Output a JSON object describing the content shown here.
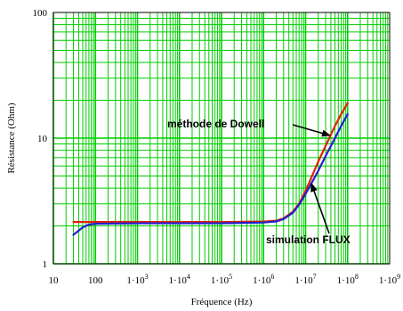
{
  "chart_data": {
    "type": "line",
    "xscale": "log",
    "yscale": "log",
    "xlim": [
      10,
      1000000000
    ],
    "ylim": [
      1,
      100
    ],
    "xlabel": "Fréquence (Hz)",
    "ylabel": "Résistance (Ohm)",
    "grid": true,
    "grid_color": "#00cc00",
    "x_ticks": [
      {
        "value": 10,
        "base": "10",
        "exp": ""
      },
      {
        "value": 100,
        "base": "100",
        "exp": ""
      },
      {
        "value": 1000,
        "base": "1·10",
        "exp": "3"
      },
      {
        "value": 10000,
        "base": "1·10",
        "exp": "4"
      },
      {
        "value": 100000,
        "base": "1·10",
        "exp": "5"
      },
      {
        "value": 1000000,
        "base": "1·10",
        "exp": "6"
      },
      {
        "value": 10000000,
        "base": "1·10",
        "exp": "7"
      },
      {
        "value": 100000000,
        "base": "1·10",
        "exp": "8"
      },
      {
        "value": 1000000000,
        "base": "1·10",
        "exp": "9"
      }
    ],
    "y_ticks": [
      {
        "value": 1,
        "label": "1"
      },
      {
        "value": 10,
        "label": "10"
      },
      {
        "value": 100,
        "label": "100"
      }
    ],
    "series": [
      {
        "name": "méthode de Dowell",
        "color": "#e02000",
        "x": [
          30,
          100,
          1000,
          10000,
          100000,
          1000000,
          2000000,
          3000000,
          5000000,
          7000000,
          10000000,
          15000000,
          20000000,
          30000000,
          50000000,
          70000000,
          100000000
        ],
        "y": [
          2.15,
          2.15,
          2.15,
          2.15,
          2.15,
          2.17,
          2.2,
          2.3,
          2.6,
          3.0,
          3.8,
          5.2,
          6.5,
          8.7,
          12.5,
          15.5,
          19.0
        ]
      },
      {
        "name": "simulation FLUX",
        "color": "#2020d0",
        "x": [
          30,
          50,
          70,
          100,
          1000,
          10000,
          100000,
          1000000,
          2000000,
          3000000,
          5000000,
          7000000,
          10000000,
          15000000,
          20000000,
          30000000,
          50000000,
          70000000,
          100000000
        ],
        "y": [
          1.7,
          1.95,
          2.05,
          2.08,
          2.1,
          2.1,
          2.1,
          2.13,
          2.17,
          2.27,
          2.55,
          2.95,
          3.6,
          4.6,
          5.5,
          7.2,
          10.0,
          12.5,
          15.5
        ]
      }
    ],
    "annotations": [
      {
        "text": "méthode de Dowell",
        "x_data": 30000000,
        "y_data": 9.0
      },
      {
        "text": "simulation FLUX",
        "x_data": 12000000,
        "y_data": 4.0
      }
    ]
  }
}
